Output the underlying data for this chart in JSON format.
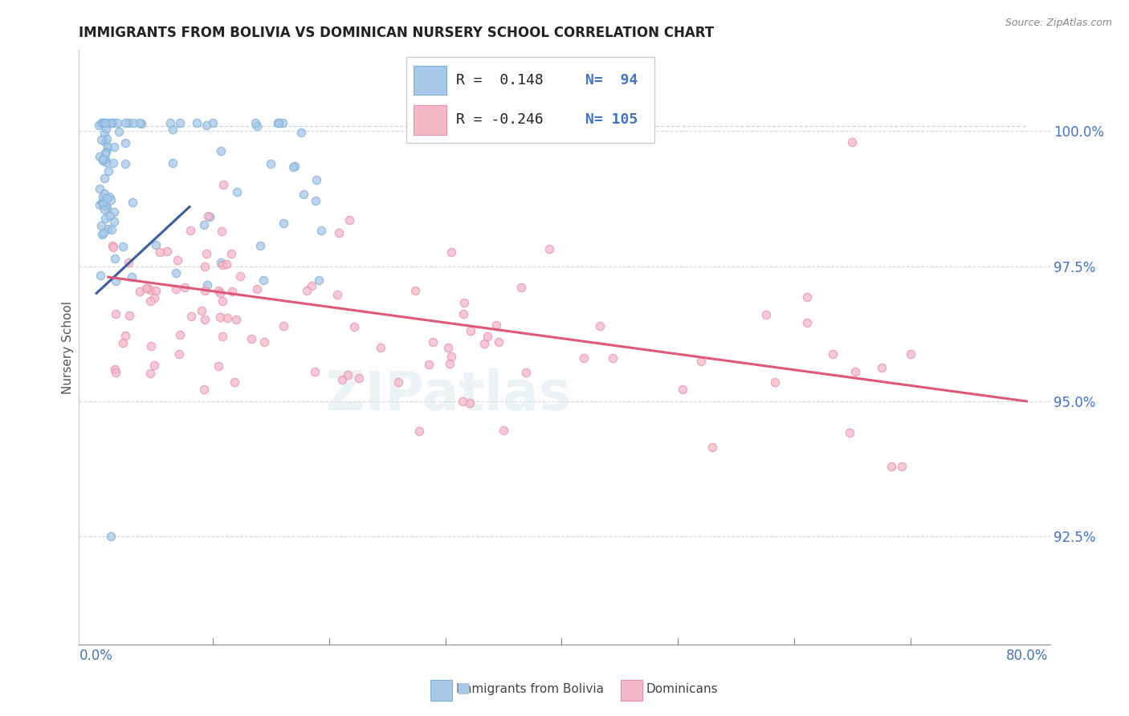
{
  "title": "IMMIGRANTS FROM BOLIVIA VS DOMINICAN NURSERY SCHOOL CORRELATION CHART",
  "source": "Source: ZipAtlas.com",
  "ylabel": "Nursery School",
  "ytick_labels": [
    "92.5%",
    "95.0%",
    "97.5%",
    "100.0%"
  ],
  "ytick_values": [
    92.5,
    95.0,
    97.5,
    100.0
  ],
  "xlim": [
    -1.5,
    82
  ],
  "ylim": [
    90.5,
    101.5
  ],
  "blue_color": "#a8c8e8",
  "blue_edge": "#7ab0d8",
  "pink_color": "#f5b8c8",
  "pink_edge": "#e890a8",
  "trend_blue": "#3a5fa0",
  "trend_pink": "#e05878",
  "ref_line_color": "#9ab8d8",
  "title_color": "#222222",
  "axis_tick_color": "#4472c4",
  "grid_color": "#cccccc",
  "legend_R1": "R =  0.148",
  "legend_N1": "N=  94",
  "legend_R2": "R = -0.246",
  "legend_N2": "N= 105",
  "watermark": "ZIPatlas",
  "legend_label1": "Immigrants from Bolivia",
  "legend_label2": "Dominicans"
}
